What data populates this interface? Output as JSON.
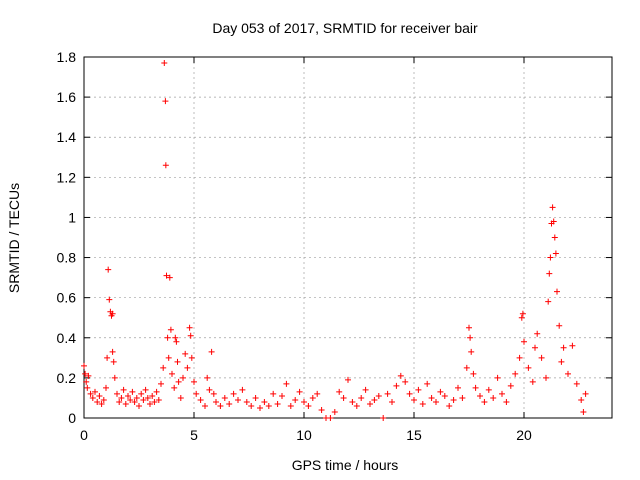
{
  "chart_data": {
    "type": "scatter",
    "title": "Day 053 of 2017, SRMTID for receiver bair",
    "xlabel": "GPS time / hours",
    "ylabel": "SRMTID / TECUs",
    "xlim": [
      0,
      24
    ],
    "ylim": [
      0,
      1.8
    ],
    "xticks": [
      0,
      5,
      10,
      15,
      20
    ],
    "xtick_labels": [
      "0",
      "5",
      "10",
      "15",
      "20"
    ],
    "yticks": [
      0,
      0.2,
      0.4,
      0.6,
      0.8,
      1.0,
      1.2,
      1.4,
      1.6,
      1.8
    ],
    "ytick_labels": [
      "0",
      "0.2",
      "0.4",
      "0.6",
      "0.8",
      "1",
      "1.2",
      "1.4",
      "1.6",
      "1.8"
    ],
    "grid": true,
    "marker": "+",
    "marker_color": "#ff0000",
    "series": [
      {
        "name": "SRMTID",
        "points": [
          [
            0.0,
            0.26
          ],
          [
            0.05,
            0.22
          ],
          [
            0.1,
            0.18
          ],
          [
            0.15,
            0.15
          ],
          [
            0.2,
            0.21
          ],
          [
            0.3,
            0.12
          ],
          [
            0.4,
            0.1
          ],
          [
            0.5,
            0.13
          ],
          [
            0.6,
            0.08
          ],
          [
            0.7,
            0.11
          ],
          [
            0.8,
            0.07
          ],
          [
            0.9,
            0.09
          ],
          [
            1.0,
            0.15
          ],
          [
            1.05,
            0.3
          ],
          [
            1.1,
            0.74
          ],
          [
            1.15,
            0.59
          ],
          [
            1.2,
            0.53
          ],
          [
            1.25,
            0.51
          ],
          [
            1.3,
            0.52
          ],
          [
            1.3,
            0.33
          ],
          [
            1.35,
            0.28
          ],
          [
            1.4,
            0.2
          ],
          [
            1.5,
            0.12
          ],
          [
            1.6,
            0.08
          ],
          [
            1.7,
            0.1
          ],
          [
            1.8,
            0.14
          ],
          [
            1.9,
            0.07
          ],
          [
            2.0,
            0.11
          ],
          [
            2.1,
            0.09
          ],
          [
            2.2,
            0.13
          ],
          [
            2.3,
            0.08
          ],
          [
            2.4,
            0.1
          ],
          [
            2.5,
            0.06
          ],
          [
            2.6,
            0.12
          ],
          [
            2.7,
            0.09
          ],
          [
            2.8,
            0.14
          ],
          [
            2.9,
            0.1
          ],
          [
            3.0,
            0.07
          ],
          [
            3.1,
            0.11
          ],
          [
            3.2,
            0.08
          ],
          [
            3.3,
            0.13
          ],
          [
            3.4,
            0.09
          ],
          [
            3.5,
            0.17
          ],
          [
            3.6,
            0.25
          ],
          [
            3.65,
            1.77
          ],
          [
            3.7,
            1.58
          ],
          [
            3.72,
            1.26
          ],
          [
            3.75,
            0.71
          ],
          [
            3.8,
            0.4
          ],
          [
            3.85,
            0.3
          ],
          [
            3.9,
            0.7
          ],
          [
            3.95,
            0.44
          ],
          [
            4.0,
            0.22
          ],
          [
            4.1,
            0.15
          ],
          [
            4.15,
            0.4
          ],
          [
            4.2,
            0.38
          ],
          [
            4.25,
            0.28
          ],
          [
            4.3,
            0.18
          ],
          [
            4.4,
            0.1
          ],
          [
            4.5,
            0.2
          ],
          [
            4.6,
            0.32
          ],
          [
            4.7,
            0.25
          ],
          [
            4.8,
            0.45
          ],
          [
            4.85,
            0.41
          ],
          [
            4.9,
            0.3
          ],
          [
            5.0,
            0.18
          ],
          [
            5.1,
            0.12
          ],
          [
            5.3,
            0.09
          ],
          [
            5.5,
            0.06
          ],
          [
            5.6,
            0.2
          ],
          [
            5.7,
            0.14
          ],
          [
            5.8,
            0.33
          ],
          [
            5.9,
            0.12
          ],
          [
            6.0,
            0.08
          ],
          [
            6.2,
            0.06
          ],
          [
            6.4,
            0.1
          ],
          [
            6.6,
            0.07
          ],
          [
            6.8,
            0.12
          ],
          [
            7.0,
            0.09
          ],
          [
            7.2,
            0.14
          ],
          [
            7.4,
            0.08
          ],
          [
            7.6,
            0.06
          ],
          [
            7.8,
            0.1
          ],
          [
            8.0,
            0.05
          ],
          [
            8.2,
            0.08
          ],
          [
            8.4,
            0.06
          ],
          [
            8.6,
            0.12
          ],
          [
            8.8,
            0.07
          ],
          [
            9.0,
            0.11
          ],
          [
            9.2,
            0.17
          ],
          [
            9.4,
            0.06
          ],
          [
            9.6,
            0.09
          ],
          [
            9.8,
            0.13
          ],
          [
            10.0,
            0.08
          ],
          [
            10.2,
            0.06
          ],
          [
            10.4,
            0.1
          ],
          [
            10.6,
            0.12
          ],
          [
            10.8,
            0.04
          ],
          [
            11.0,
            0.0
          ],
          [
            11.2,
            0.0
          ],
          [
            11.4,
            0.03
          ],
          [
            11.6,
            0.13
          ],
          [
            11.8,
            0.1
          ],
          [
            12.0,
            0.19
          ],
          [
            12.2,
            0.08
          ],
          [
            12.4,
            0.06
          ],
          [
            12.6,
            0.1
          ],
          [
            12.8,
            0.14
          ],
          [
            13.0,
            0.07
          ],
          [
            13.2,
            0.09
          ],
          [
            13.4,
            0.11
          ],
          [
            13.6,
            0.0
          ],
          [
            13.8,
            0.12
          ],
          [
            14.0,
            0.08
          ],
          [
            14.2,
            0.16
          ],
          [
            14.4,
            0.21
          ],
          [
            14.6,
            0.18
          ],
          [
            14.8,
            0.12
          ],
          [
            15.0,
            0.09
          ],
          [
            15.2,
            0.14
          ],
          [
            15.4,
            0.07
          ],
          [
            15.6,
            0.17
          ],
          [
            15.8,
            0.1
          ],
          [
            16.0,
            0.08
          ],
          [
            16.2,
            0.13
          ],
          [
            16.4,
            0.11
          ],
          [
            16.6,
            0.06
          ],
          [
            16.8,
            0.09
          ],
          [
            17.0,
            0.15
          ],
          [
            17.2,
            0.1
          ],
          [
            17.4,
            0.25
          ],
          [
            17.5,
            0.45
          ],
          [
            17.55,
            0.4
          ],
          [
            17.6,
            0.33
          ],
          [
            17.7,
            0.22
          ],
          [
            17.8,
            0.15
          ],
          [
            18.0,
            0.11
          ],
          [
            18.2,
            0.08
          ],
          [
            18.4,
            0.14
          ],
          [
            18.6,
            0.1
          ],
          [
            18.8,
            0.2
          ],
          [
            19.0,
            0.12
          ],
          [
            19.2,
            0.08
          ],
          [
            19.4,
            0.16
          ],
          [
            19.6,
            0.22
          ],
          [
            19.8,
            0.3
          ],
          [
            19.9,
            0.5
          ],
          [
            19.95,
            0.52
          ],
          [
            20.0,
            0.38
          ],
          [
            20.2,
            0.25
          ],
          [
            20.4,
            0.18
          ],
          [
            20.5,
            0.35
          ],
          [
            20.6,
            0.42
          ],
          [
            20.8,
            0.3
          ],
          [
            21.0,
            0.2
          ],
          [
            21.1,
            0.58
          ],
          [
            21.15,
            0.72
          ],
          [
            21.2,
            0.8
          ],
          [
            21.25,
            0.97
          ],
          [
            21.3,
            1.05
          ],
          [
            21.35,
            0.98
          ],
          [
            21.4,
            0.9
          ],
          [
            21.45,
            0.82
          ],
          [
            21.5,
            0.63
          ],
          [
            21.6,
            0.46
          ],
          [
            21.7,
            0.28
          ],
          [
            21.8,
            0.35
          ],
          [
            22.0,
            0.22
          ],
          [
            22.2,
            0.36
          ],
          [
            22.4,
            0.17
          ],
          [
            22.6,
            0.09
          ],
          [
            22.7,
            0.03
          ],
          [
            22.8,
            0.12
          ]
        ]
      }
    ]
  }
}
